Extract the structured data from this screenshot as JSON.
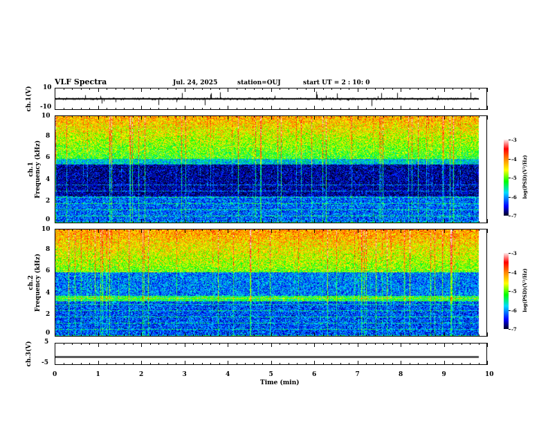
{
  "header": {
    "title": "VLF Spectra",
    "date": "Jul. 24, 2025",
    "station": "station=OUJ",
    "start": "start  UT =  2 : 10: 0"
  },
  "colors": {
    "ink": "#000000"
  },
  "chart_data": [
    {
      "type": "line",
      "name": "ch1 waveform",
      "ylabel": "ch.1(V)",
      "ylim": [
        -10,
        10
      ],
      "ytick_labels": [
        "10",
        "-10"
      ],
      "xlim": [
        0,
        10
      ],
      "data_end_min": 9.83,
      "baseline": 0
    },
    {
      "type": "heatmap",
      "name": "ch1 spectrogram",
      "ylabel": "ch.1\nFrequency (kHz)",
      "ylabel_top": "ch.1",
      "ylabel_bottom": "Frequency (kHz)",
      "ylim": [
        0,
        10
      ],
      "ytick_labels": [
        "0",
        "2",
        "4",
        "6",
        "8",
        "10"
      ],
      "xlim": [
        0,
        10
      ],
      "colorbar": {
        "label": "log(PSD)(V²/Hz)",
        "range": [
          -7,
          -3
        ],
        "tick_labels": [
          "-3",
          "-4",
          "-5",
          "-6",
          "-7"
        ]
      },
      "quiet_band_khz": [
        2.5,
        5.5
      ]
    },
    {
      "type": "heatmap",
      "name": "ch2 spectrogram",
      "ylabel_top": "ch.2",
      "ylabel_bottom": "Frequency (kHz)",
      "ylim": [
        0,
        10
      ],
      "ytick_labels": [
        "0",
        "2",
        "4",
        "6",
        "8",
        "10"
      ],
      "xlim": [
        0,
        10
      ],
      "colorbar": {
        "label": "log(PSD)(V²/Hz)",
        "range": [
          -7,
          -3
        ],
        "tick_labels": [
          "-3",
          "-4",
          "-5",
          "-6",
          "-7"
        ]
      },
      "green_band_khz": [
        3.3,
        3.8
      ]
    },
    {
      "type": "line",
      "name": "ch3 waveform",
      "ylabel": "ch.3(V)",
      "ylim": [
        -5,
        5
      ],
      "ytick_labels": [
        "5",
        "-5"
      ],
      "xlim": [
        0,
        10
      ],
      "constant_value": -1.5,
      "data_end_min": 9.83
    }
  ],
  "xaxis": {
    "label": "Time (min)",
    "tick_labels": [
      "0",
      "1",
      "2",
      "3",
      "4",
      "5",
      "6",
      "7",
      "8",
      "9",
      "10"
    ]
  }
}
